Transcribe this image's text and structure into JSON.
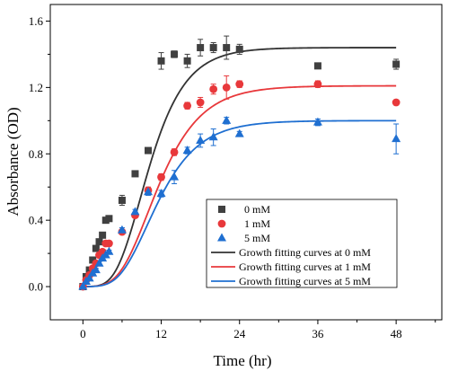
{
  "chart_data": {
    "type": "scatter",
    "xlabel": "Time (hr)",
    "ylabel": "Absorbance (OD)",
    "xlim": [
      -5,
      55
    ],
    "ylim": [
      -0.2,
      1.7
    ],
    "xticks": [
      0,
      12,
      24,
      36,
      48
    ],
    "yticks": [
      0.0,
      0.4,
      0.8,
      1.2,
      1.6
    ],
    "xtick_labels": [
      "0",
      "12",
      "24",
      "36",
      "48"
    ],
    "ytick_labels": [
      "0.0",
      "0.4",
      "0.8",
      "1.2",
      "1.6"
    ],
    "legend_position": "center-right",
    "series": [
      {
        "name": "0 mM",
        "marker": "square",
        "color": "#404040",
        "points": [
          {
            "x": 0,
            "y": 0.0,
            "err": 0.01
          },
          {
            "x": 0.5,
            "y": 0.06,
            "err": 0.01
          },
          {
            "x": 1,
            "y": 0.1,
            "err": 0.01
          },
          {
            "x": 1.5,
            "y": 0.16,
            "err": 0.01
          },
          {
            "x": 2,
            "y": 0.23,
            "err": 0.015
          },
          {
            "x": 2.5,
            "y": 0.27,
            "err": 0.01
          },
          {
            "x": 3,
            "y": 0.31,
            "err": 0.01
          },
          {
            "x": 3.5,
            "y": 0.4,
            "err": 0.01
          },
          {
            "x": 4,
            "y": 0.41,
            "err": 0.01
          },
          {
            "x": 6,
            "y": 0.52,
            "err": 0.03
          },
          {
            "x": 8,
            "y": 0.68,
            "err": 0.015
          },
          {
            "x": 10,
            "y": 0.82,
            "err": 0.015
          },
          {
            "x": 12,
            "y": 1.36,
            "err": 0.05
          },
          {
            "x": 14,
            "y": 1.4,
            "err": 0.02
          },
          {
            "x": 16,
            "y": 1.36,
            "err": 0.04
          },
          {
            "x": 18,
            "y": 1.44,
            "err": 0.05
          },
          {
            "x": 20,
            "y": 1.44,
            "err": 0.03
          },
          {
            "x": 22,
            "y": 1.44,
            "err": 0.07
          },
          {
            "x": 24,
            "y": 1.43,
            "err": 0.03
          },
          {
            "x": 36,
            "y": 1.33,
            "err": 0.015
          },
          {
            "x": 48,
            "y": 1.34,
            "err": 0.03
          }
        ]
      },
      {
        "name": "1 mM",
        "marker": "circle",
        "color": "#e8383b",
        "points": [
          {
            "x": 0,
            "y": 0.0,
            "err": 0.01
          },
          {
            "x": 0.5,
            "y": 0.04,
            "err": 0.01
          },
          {
            "x": 1,
            "y": 0.07,
            "err": 0.01
          },
          {
            "x": 1.5,
            "y": 0.11,
            "err": 0.01
          },
          {
            "x": 2,
            "y": 0.14,
            "err": 0.01
          },
          {
            "x": 2.5,
            "y": 0.19,
            "err": 0.01
          },
          {
            "x": 3,
            "y": 0.21,
            "err": 0.01
          },
          {
            "x": 3.5,
            "y": 0.26,
            "err": 0.01
          },
          {
            "x": 4,
            "y": 0.26,
            "err": 0.01
          },
          {
            "x": 6,
            "y": 0.33,
            "err": 0.015
          },
          {
            "x": 8,
            "y": 0.43,
            "err": 0.015
          },
          {
            "x": 10,
            "y": 0.58,
            "err": 0.02
          },
          {
            "x": 12,
            "y": 0.66,
            "err": 0.02
          },
          {
            "x": 14,
            "y": 0.81,
            "err": 0.02
          },
          {
            "x": 16,
            "y": 1.09,
            "err": 0.02
          },
          {
            "x": 18,
            "y": 1.11,
            "err": 0.03
          },
          {
            "x": 20,
            "y": 1.19,
            "err": 0.03
          },
          {
            "x": 22,
            "y": 1.2,
            "err": 0.07
          },
          {
            "x": 24,
            "y": 1.22,
            "err": 0.02
          },
          {
            "x": 36,
            "y": 1.22,
            "err": 0.02
          },
          {
            "x": 48,
            "y": 1.11,
            "err": 0.015
          }
        ]
      },
      {
        "name": "5 mM",
        "marker": "triangle",
        "color": "#1f6fd1",
        "points": [
          {
            "x": 0,
            "y": 0.0,
            "err": 0.01
          },
          {
            "x": 0.5,
            "y": 0.03,
            "err": 0.01
          },
          {
            "x": 1,
            "y": 0.05,
            "err": 0.01
          },
          {
            "x": 1.5,
            "y": 0.08,
            "err": 0.01
          },
          {
            "x": 2,
            "y": 0.1,
            "err": 0.01
          },
          {
            "x": 2.5,
            "y": 0.14,
            "err": 0.01
          },
          {
            "x": 3,
            "y": 0.17,
            "err": 0.01
          },
          {
            "x": 3.5,
            "y": 0.19,
            "err": 0.01
          },
          {
            "x": 4,
            "y": 0.21,
            "err": 0.01
          },
          {
            "x": 6,
            "y": 0.34,
            "err": 0.015
          },
          {
            "x": 8,
            "y": 0.45,
            "err": 0.015
          },
          {
            "x": 10,
            "y": 0.57,
            "err": 0.02
          },
          {
            "x": 12,
            "y": 0.56,
            "err": 0.02
          },
          {
            "x": 14,
            "y": 0.66,
            "err": 0.04
          },
          {
            "x": 16,
            "y": 0.82,
            "err": 0.02
          },
          {
            "x": 18,
            "y": 0.88,
            "err": 0.04
          },
          {
            "x": 20,
            "y": 0.9,
            "err": 0.05
          },
          {
            "x": 22,
            "y": 1.0,
            "err": 0.02
          },
          {
            "x": 24,
            "y": 0.92,
            "err": 0.015
          },
          {
            "x": 36,
            "y": 0.99,
            "err": 0.02
          },
          {
            "x": 48,
            "y": 0.89,
            "err": 0.09
          }
        ]
      }
    ],
    "fits": [
      {
        "name": "Growth fitting curves at 0 mM",
        "color": "#333333",
        "A": 1.44,
        "mu": 0.14,
        "lambda": 5.0
      },
      {
        "name": "Growth fitting curves at 1 mM",
        "color": "#e8383b",
        "A": 1.21,
        "mu": 0.1,
        "lambda": 5.5
      },
      {
        "name": "Growth fitting curves at 5 mM",
        "color": "#1f6fd1",
        "A": 1.0,
        "mu": 0.085,
        "lambda": 5.5
      }
    ]
  }
}
